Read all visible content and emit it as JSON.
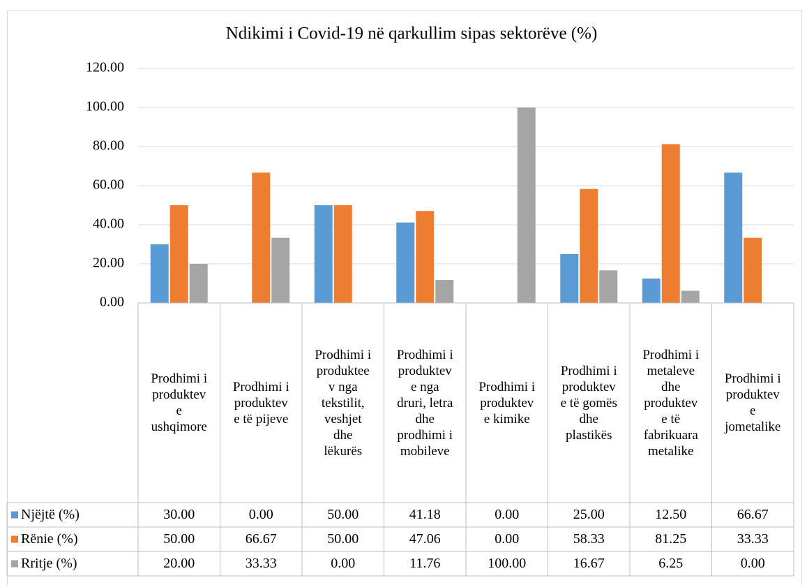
{
  "chart_data": {
    "type": "bar",
    "title": "Ndikimi i Covid-19 në qarkullim sipas sektorëve (%)",
    "categories": [
      "Prodhimi i produkteve ushqimore",
      "Prodhimi i produkteve të pijeve",
      "Prodhimi i produkteev nga tekstilit, veshjet dhe lëkurës",
      "Prodhimi i produkteve nga druri, letra dhe prodhimi i mobileve",
      "Prodhimi i produkteve kimike",
      "Prodhimi i produkteve të gomës dhe plastikës",
      "Prodhimi i metaleve dhe produkteve të fabrikuara metalike",
      "Prodhimi i produkteve jometalike"
    ],
    "series": [
      {
        "name": "Njëjtë (%)",
        "color": "#5b9bd5",
        "values": [
          30,
          0,
          50,
          41.18,
          0,
          25,
          12.5,
          66.67
        ],
        "value_labels": [
          "30.00",
          "0.00",
          "50.00",
          "41.18",
          "0.00",
          "25.00",
          "12.50",
          "66.67"
        ]
      },
      {
        "name": "Rënie (%)",
        "color": "#ed7d31",
        "values": [
          50,
          66.67,
          50,
          47.06,
          0,
          58.33,
          81.25,
          33.33
        ],
        "value_labels": [
          "50.00",
          "66.67",
          "50.00",
          "47.06",
          "0.00",
          "58.33",
          "81.25",
          "33.33"
        ]
      },
      {
        "name": "Rritje (%)",
        "color": "#a5a5a5",
        "values": [
          20,
          33.33,
          0,
          11.76,
          100,
          16.67,
          6.25,
          0
        ],
        "value_labels": [
          "20.00",
          "33.33",
          "0.00",
          "11.76",
          "100.00",
          "16.67",
          "6.25",
          "0.00"
        ]
      }
    ],
    "ylim": [
      0,
      120
    ],
    "yticks": [
      {
        "value": 0,
        "label": "0.00"
      },
      {
        "value": 20,
        "label": "20.00"
      },
      {
        "value": 40,
        "label": "40.00"
      },
      {
        "value": 60,
        "label": "60.00"
      },
      {
        "value": 80,
        "label": "80.00"
      },
      {
        "value": 100,
        "label": "100.00"
      },
      {
        "value": 120,
        "label": "120.00"
      }
    ],
    "grid": true
  }
}
